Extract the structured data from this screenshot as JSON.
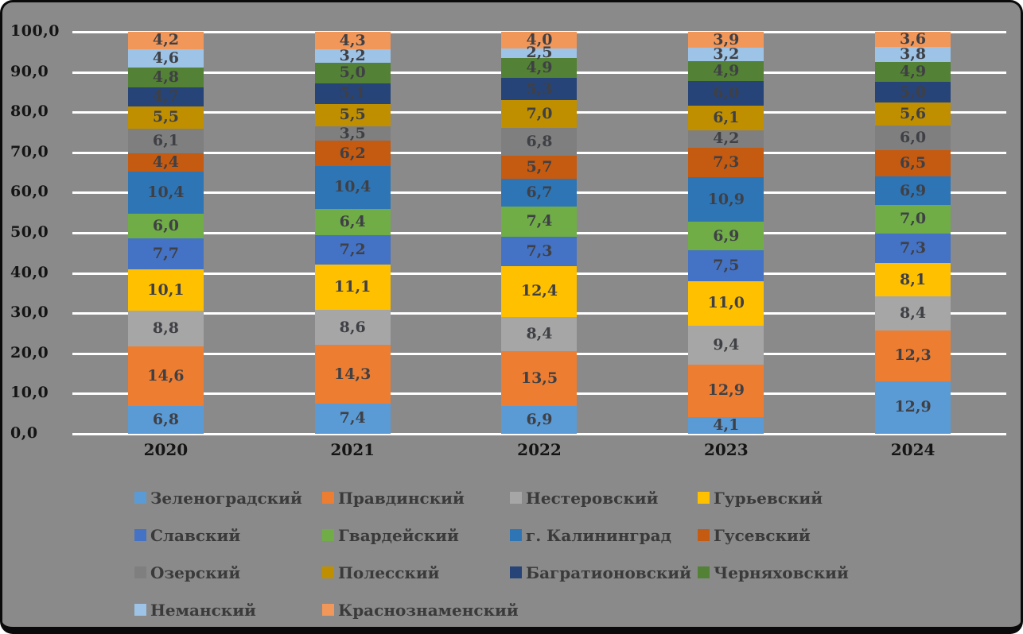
{
  "chart_data": {
    "type": "bar",
    "subtype": "stacked-100-percent-column",
    "title": "",
    "xlabel": "",
    "ylabel": "",
    "categories": [
      "2020",
      "2021",
      "2022",
      "2023",
      "2024"
    ],
    "series": [
      {
        "name": "Зеленоградский",
        "color": "#5B9BD5",
        "values": [
          6.8,
          7.4,
          6.9,
          4.1,
          12.9
        ]
      },
      {
        "name": "Правдинский",
        "color": "#ED7D31",
        "values": [
          14.6,
          14.3,
          13.5,
          12.9,
          12.3
        ]
      },
      {
        "name": "Нестеровский",
        "color": "#A6A6A6",
        "values": [
          8.8,
          8.6,
          8.4,
          9.4,
          8.4
        ]
      },
      {
        "name": "Гурьевский",
        "color": "#FFC000",
        "values": [
          10.1,
          11.1,
          12.4,
          11.0,
          8.1
        ]
      },
      {
        "name": "Славский",
        "color": "#4472C4",
        "values": [
          7.7,
          7.2,
          7.3,
          7.5,
          7.3
        ]
      },
      {
        "name": "Гвардейский",
        "color": "#70AD47",
        "values": [
          6.0,
          6.4,
          7.4,
          6.9,
          7.0
        ]
      },
      {
        "name": "г. Калининград",
        "color": "#2E75B6",
        "values": [
          10.4,
          10.4,
          6.7,
          10.9,
          6.9
        ]
      },
      {
        "name": "Гусевский",
        "color": "#C55A11",
        "values": [
          4.4,
          6.2,
          5.7,
          7.3,
          6.5
        ]
      },
      {
        "name": "Озерский",
        "color": "#7F7F7F",
        "values": [
          6.1,
          3.5,
          6.8,
          4.2,
          6.0
        ]
      },
      {
        "name": "Полесский",
        "color": "#BF8F00",
        "values": [
          5.5,
          5.5,
          7.0,
          6.1,
          5.6
        ]
      },
      {
        "name": "Багратионовский",
        "color": "#264478",
        "values": [
          4.7,
          5.1,
          5.3,
          6.0,
          5.0
        ]
      },
      {
        "name": "Черняховский",
        "color": "#538135",
        "values": [
          4.8,
          5.0,
          4.9,
          4.9,
          4.9
        ]
      },
      {
        "name": "Неманский",
        "color": "#9DC3E6",
        "values": [
          4.6,
          3.2,
          2.5,
          3.2,
          3.8
        ]
      },
      {
        "name": "Краснознаменский",
        "color": "#F1975A",
        "values": [
          4.2,
          4.3,
          4.0,
          3.9,
          3.6
        ]
      }
    ],
    "y_axis": {
      "ticks": [
        "100,0",
        "90,0",
        "80,0",
        "70,0",
        "60,0",
        "50,0",
        "40,0",
        "30,0",
        "20,0",
        "10,0",
        "0,0"
      ],
      "min": 0,
      "max": 100,
      "interval": 10
    },
    "data_labels": true,
    "decimal_separator": ",",
    "grid": {
      "horizontal": true,
      "color": "#FFFFFF"
    },
    "legend_position": "bottom",
    "background_color": "#8A8A8A",
    "frame_border_color": "#0A0A0A"
  }
}
